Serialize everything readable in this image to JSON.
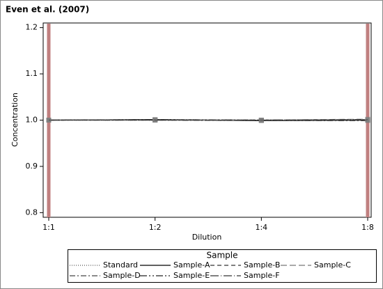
{
  "chart_data": {
    "type": "line",
    "title": "Even et al. (2007)",
    "x_label": "Dilution",
    "y_label": "Concentration",
    "legend_title": "Sample",
    "categories": [
      "1:1",
      "1:2",
      "1:4",
      "1:8"
    ],
    "series": [
      {
        "name": "Standard",
        "color": "#555555",
        "dash": "1,2",
        "values": [
          1.0,
          1.0,
          1.0,
          1.0
        ]
      },
      {
        "name": "Sample-A",
        "color": "#000000",
        "dash": "none",
        "values": [
          1.0,
          1.001,
          0.999,
          1.0
        ]
      },
      {
        "name": "Sample-B",
        "color": "#333333",
        "dash": "6,4",
        "values": [
          1.0,
          1.001,
          1.0,
          1.001
        ]
      },
      {
        "name": "Sample-C",
        "color": "#777777",
        "dash": "9,4",
        "values": [
          1.0,
          1.0,
          1.0,
          1.002
        ]
      },
      {
        "name": "Sample-D",
        "color": "#444444",
        "dash": "8,3,2,3",
        "values": [
          1.0,
          1.0,
          0.999,
          0.999
        ]
      },
      {
        "name": "Sample-E",
        "color": "#222222",
        "dash": "10,3,2,3,2,3",
        "values": [
          1.0,
          1.001,
          1.0,
          1.0
        ]
      },
      {
        "name": "Sample-F",
        "color": "#333333",
        "dash": "12,3,1,3",
        "values": [
          1.0,
          1.0,
          1.0,
          1.001
        ]
      }
    ],
    "marker_color": "#808080",
    "reference_color": "#c08080",
    "ylim": [
      0.79,
      1.21
    ],
    "yticks": [
      0.8,
      0.9,
      {
        "value": 1,
        "label": "1.0"
      },
      1.1,
      1.2
    ]
  }
}
